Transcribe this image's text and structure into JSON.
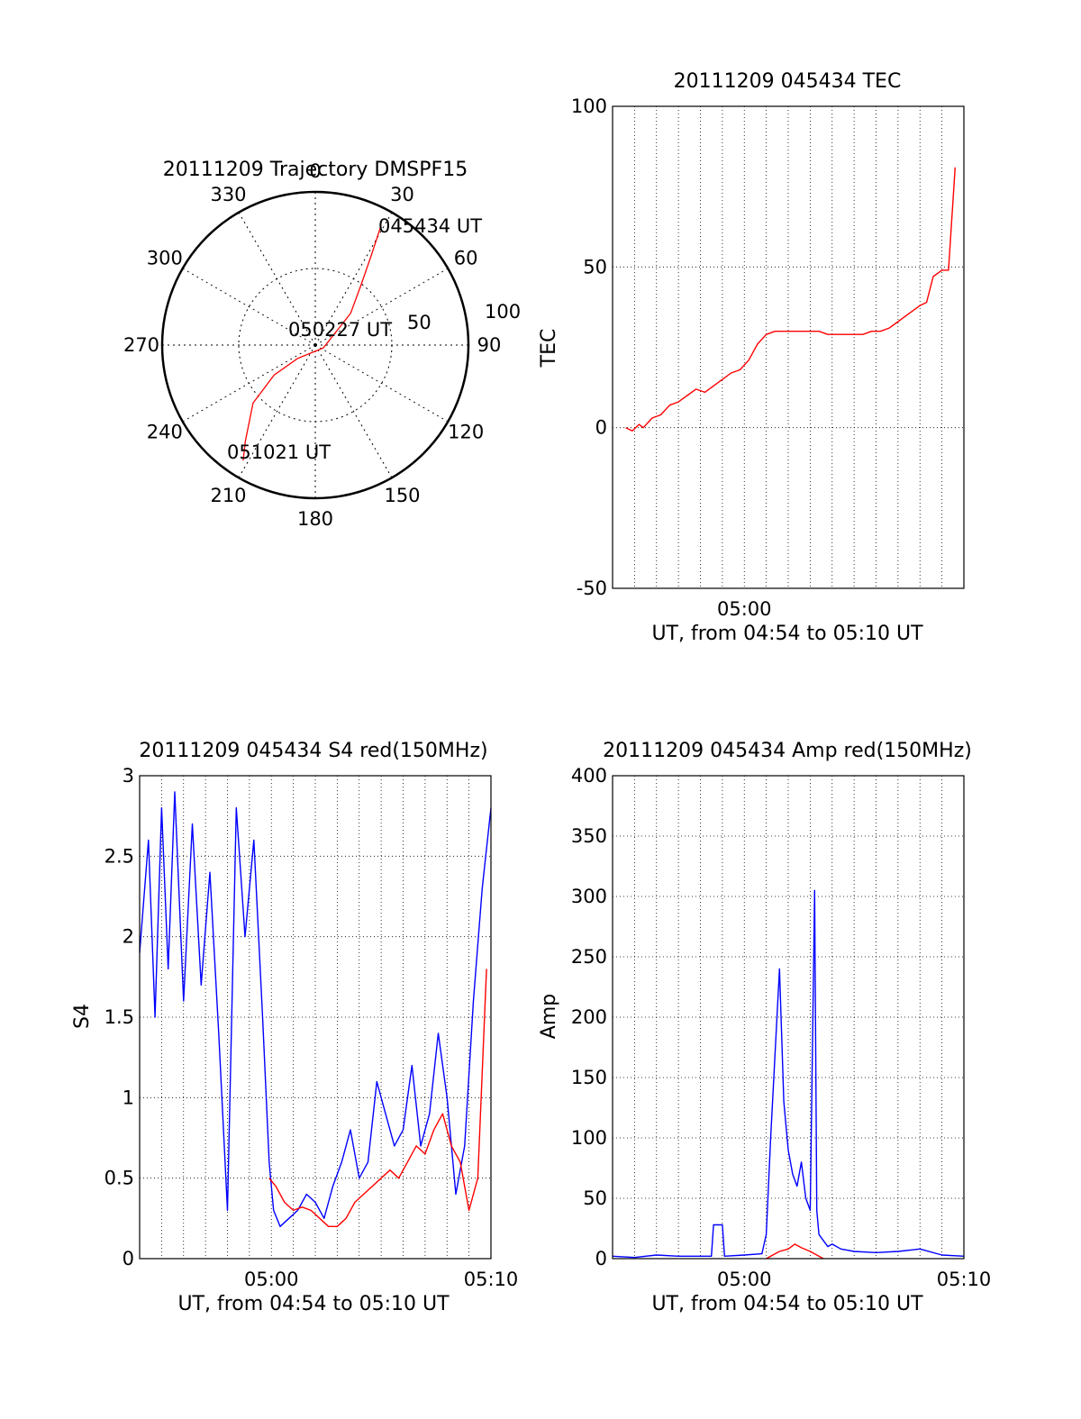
{
  "chart_data": [
    {
      "type": "polar",
      "title": "20111209 Trajectory DMSPF15",
      "azimuth_labels": [
        "0",
        "30",
        "60",
        "90",
        "120",
        "150",
        "180",
        "210",
        "240",
        "270",
        "300",
        "330"
      ],
      "radial_labels": [
        "50",
        "100"
      ],
      "track": {
        "color": "#ff0000",
        "start_label": "045434 UT",
        "mid_label": "050227 UT",
        "end_label": "051021 UT",
        "points": [
          {
            "az": 29,
            "zen": 79
          },
          {
            "az": 32,
            "zen": 62
          },
          {
            "az": 37,
            "zen": 45
          },
          {
            "az": 48,
            "zen": 28
          },
          {
            "az": 110,
            "zen": 5
          },
          {
            "az": 233,
            "zen": 13
          },
          {
            "az": 234,
            "zen": 30
          },
          {
            "az": 227,
            "zen": 50
          },
          {
            "az": 216,
            "zen": 70
          },
          {
            "az": 212,
            "zen": 80
          }
        ]
      }
    },
    {
      "type": "line",
      "title": "20111209 045434 TEC",
      "xlabel": "UT, from 04:54 to 05:10 UT",
      "ylabel": "TEC",
      "xlim": [
        0,
        16
      ],
      "ylim": [
        -50,
        100
      ],
      "yticks": [
        "100",
        "50",
        "0",
        "-50"
      ],
      "xticks": [
        "05:00"
      ],
      "series": [
        {
          "color": "#ff0000",
          "x": [
            0.6,
            0.9,
            1.2,
            1.4,
            1.8,
            2.2,
            2.6,
            3.0,
            3.4,
            3.8,
            4.2,
            4.6,
            5.0,
            5.4,
            5.8,
            6.2,
            6.6,
            7.0,
            7.4,
            7.8,
            8.2,
            8.6,
            9.0,
            9.4,
            9.8,
            10.2,
            10.6,
            11.0,
            11.4,
            11.8,
            12.2,
            12.6,
            13.0,
            13.4,
            13.8,
            14.0,
            14.3,
            14.6,
            15.0,
            15.3,
            15.6
          ],
          "y": [
            0,
            -1,
            1,
            0,
            3,
            4,
            7,
            8,
            10,
            12,
            11,
            13,
            15,
            17,
            18,
            21,
            26,
            29,
            30,
            30,
            30,
            30,
            30,
            30,
            29,
            29,
            29,
            29,
            29,
            30,
            30,
            31,
            33,
            35,
            37,
            38,
            39,
            47,
            49,
            49,
            81
          ]
        }
      ]
    },
    {
      "type": "line",
      "title": "20111209 045434 S4 red(150MHz)",
      "xlabel": "UT, from 04:54 to 05:10 UT",
      "ylabel": "S4",
      "xlim": [
        0,
        16
      ],
      "ylim": [
        0,
        3
      ],
      "yticks": [
        "0",
        "0.5",
        "1",
        "1.5",
        "2",
        "2.5",
        "3"
      ],
      "xticks": [
        "05:00",
        "05:10"
      ],
      "series": [
        {
          "color": "#0000ff",
          "x": [
            0.0,
            0.4,
            0.7,
            1.0,
            1.3,
            1.6,
            2.0,
            2.4,
            2.8,
            3.2,
            3.6,
            4.0,
            4.4,
            4.8,
            5.2,
            5.6,
            5.9,
            6.1,
            6.4,
            6.8,
            7.2,
            7.6,
            8.0,
            8.4,
            8.8,
            9.2,
            9.6,
            10.0,
            10.4,
            10.8,
            11.2,
            11.6,
            12.0,
            12.4,
            12.8,
            13.2,
            13.6,
            14.0,
            14.4,
            14.8,
            15.2,
            15.6,
            16.0
          ],
          "y": [
            1.9,
            2.6,
            1.5,
            2.8,
            1.8,
            2.9,
            1.6,
            2.7,
            1.7,
            2.4,
            1.4,
            0.3,
            2.8,
            2.0,
            2.6,
            1.5,
            0.6,
            0.3,
            0.2,
            0.25,
            0.3,
            0.4,
            0.35,
            0.25,
            0.45,
            0.6,
            0.8,
            0.5,
            0.6,
            1.1,
            0.9,
            0.7,
            0.8,
            1.2,
            0.7,
            0.9,
            1.4,
            1.0,
            0.4,
            0.7,
            1.6,
            2.3,
            2.8
          ]
        },
        {
          "color": "#ff0000",
          "x": [
            5.9,
            6.2,
            6.6,
            7.0,
            7.4,
            7.8,
            8.2,
            8.6,
            9.0,
            9.4,
            9.8,
            10.2,
            10.6,
            11.0,
            11.4,
            11.8,
            12.2,
            12.6,
            13.0,
            13.4,
            13.8,
            14.2,
            14.6,
            15.0,
            15.4,
            15.8
          ],
          "y": [
            0.5,
            0.45,
            0.35,
            0.3,
            0.32,
            0.3,
            0.25,
            0.2,
            0.2,
            0.25,
            0.35,
            0.4,
            0.45,
            0.5,
            0.55,
            0.5,
            0.6,
            0.7,
            0.65,
            0.8,
            0.9,
            0.7,
            0.6,
            0.3,
            0.5,
            1.8
          ]
        }
      ]
    },
    {
      "type": "line",
      "title": "20111209 045434 Amp red(150MHz)",
      "xlabel": "UT, from 04:54 to 05:10 UT",
      "ylabel": "Amp",
      "xlim": [
        0,
        16
      ],
      "ylim": [
        0,
        400
      ],
      "yticks": [
        "0",
        "50",
        "100",
        "150",
        "200",
        "250",
        "300",
        "350",
        "400"
      ],
      "xticks": [
        "05:00",
        "05:10"
      ],
      "series": [
        {
          "color": "#0000ff",
          "x": [
            0.0,
            1.0,
            2.0,
            3.0,
            4.5,
            4.6,
            5.0,
            5.1,
            6.0,
            6.8,
            7.0,
            7.2,
            7.4,
            7.6,
            7.8,
            8.0,
            8.2,
            8.4,
            8.6,
            8.8,
            9.0,
            9.2,
            9.3,
            9.4,
            9.6,
            9.8,
            10.0,
            10.4,
            11.0,
            12.0,
            13.0,
            14.0,
            15.0,
            16.0
          ],
          "y": [
            2,
            1,
            3,
            2,
            2,
            28,
            28,
            2,
            3,
            4,
            20,
            100,
            170,
            240,
            130,
            90,
            70,
            60,
            80,
            50,
            40,
            305,
            40,
            20,
            15,
            10,
            12,
            8,
            6,
            5,
            6,
            8,
            3,
            2
          ]
        },
        {
          "color": "#ff0000",
          "x": [
            7.0,
            7.3,
            7.6,
            8.0,
            8.3,
            8.6,
            9.0,
            9.3,
            9.6
          ],
          "y": [
            0,
            3,
            6,
            8,
            12,
            9,
            6,
            3,
            0
          ]
        }
      ]
    }
  ]
}
